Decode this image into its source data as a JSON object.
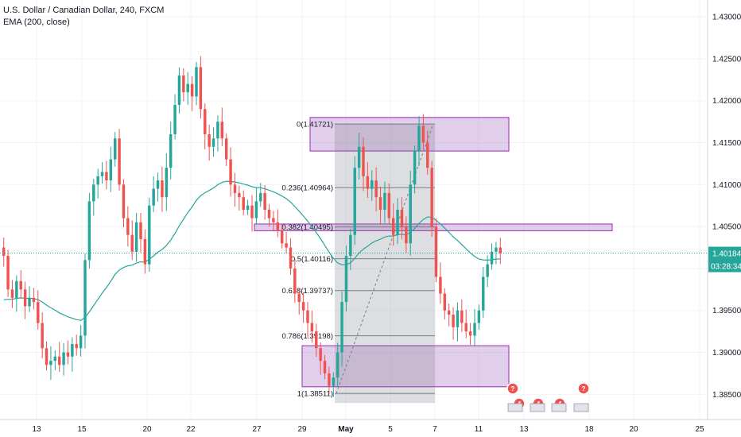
{
  "legend": {
    "symbol_line": "U.S. Dollar / Canadian Dollar, 240, FXCM",
    "indicator_line": "EMA (200, close)"
  },
  "colors": {
    "up": "#26a69a",
    "down": "#ef5350",
    "ema": "#26a69a",
    "price_line": "#26a69a",
    "zone_fill": "rgba(149,80,180,0.28)",
    "zone_border": "#9c27b0",
    "fib_shade": "rgba(120,123,134,0.25)",
    "fib_line": "#787b86"
  },
  "price_badge": {
    "price": "1.40184",
    "countdown": "03:28:34"
  },
  "chart_data": {
    "type": "candlestick",
    "symbol": "U.S. Dollar / Canadian Dollar",
    "timeframe": "240",
    "source": "FXCM",
    "y_range": [
      1.382,
      1.432
    ],
    "y_ticks": [
      "1.43000",
      "1.42500",
      "1.42000",
      "1.41500",
      "1.41000",
      "1.40500",
      "1.40000",
      "1.39500",
      "1.39000",
      "1.38500"
    ],
    "x_ticks": [
      "13",
      "15",
      "20",
      "22",
      "27",
      "29",
      "May",
      "5",
      "7",
      "11",
      "13",
      "18",
      "20",
      "25"
    ],
    "ema_label": "EMA (200, close)",
    "fibonacci": [
      {
        "label": "0(1.41721)",
        "price": 1.41721
      },
      {
        "label": "0.236(1.40964)",
        "price": 1.40964
      },
      {
        "label": "0.382(1.40495)",
        "price": 1.40495
      },
      {
        "label": "0.5(1.40116)",
        "price": 1.40116
      },
      {
        "label": "0.618(1.39737)",
        "price": 1.39737
      },
      {
        "label": "0.786(1.39198)",
        "price": 1.39198
      },
      {
        "label": "1(1.38511)",
        "price": 1.38511
      }
    ],
    "zones": [
      {
        "name": "supply-zone-top",
        "price_top": 1.418,
        "price_bottom": 1.414
      },
      {
        "name": "resistance-band",
        "price_top": 1.4053,
        "price_bottom": 1.4045
      },
      {
        "name": "demand-zone",
        "price_top": 1.3908,
        "price_bottom": 1.3859
      }
    ],
    "events": [
      "?",
      "4",
      "4",
      "4",
      "?"
    ],
    "closes": [
      1.4015,
      1.3975,
      1.3965,
      1.3985,
      1.3975,
      1.3955,
      1.3965,
      1.396,
      1.3935,
      1.3905,
      1.3885,
      1.389,
      1.3895,
      1.3885,
      1.39,
      1.3895,
      1.391,
      1.3905,
      1.392,
      1.401,
      1.408,
      1.41,
      1.411,
      1.4115,
      1.4105,
      1.413,
      1.4155,
      1.41,
      1.406,
      1.404,
      1.402,
      1.4055,
      1.4035,
      1.4005,
      1.4075,
      1.4095,
      1.4105,
      1.4085,
      1.412,
      1.416,
      1.4195,
      1.423,
      1.421,
      1.422,
      1.4205,
      1.424,
      1.419,
      1.416,
      1.4145,
      1.4155,
      1.4175,
      1.4155,
      1.413,
      1.41,
      1.409,
      1.4085,
      1.407,
      1.4075,
      1.406,
      1.408,
      1.409,
      1.407,
      1.406,
      1.4055,
      1.4045,
      1.403,
      1.4025,
      1.4,
      1.397,
      1.396,
      1.395,
      1.3935,
      1.3925,
      1.3905,
      1.389,
      1.3875,
      1.386,
      1.387,
      1.39,
      1.396,
      1.4015,
      1.404,
      1.412,
      1.4145,
      1.411,
      1.4095,
      1.4105,
      1.4085,
      1.407,
      1.409,
      1.406,
      1.404,
      1.407,
      1.405,
      1.403,
      1.41,
      1.414,
      1.417,
      1.415,
      1.412,
      1.405,
      1.399,
      1.397,
      1.395,
      1.3945,
      1.393,
      1.395,
      1.3935,
      1.3925,
      1.392,
      1.3935,
      1.395,
      1.399,
      1.4005,
      1.402,
      1.4025,
      1.4018
    ]
  }
}
